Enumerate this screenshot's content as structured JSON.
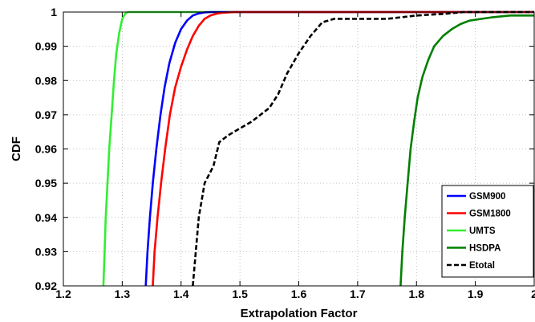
{
  "chart_data": {
    "type": "line",
    "title": "",
    "xlabel": "Extrapolation Factor",
    "ylabel": "CDF",
    "xlim": [
      1.2,
      2.0
    ],
    "ylim": [
      0.92,
      1.0
    ],
    "grid": true,
    "legend_position": "bottom-right",
    "x_ticks": [
      1.2,
      1.3,
      1.4,
      1.5,
      1.6,
      1.7,
      1.8,
      1.9,
      2.0
    ],
    "x_tick_labels": [
      "1.2",
      "1.3",
      "1.4",
      "1.5",
      "1.6",
      "1.7",
      "1.8",
      "1.9",
      "2"
    ],
    "y_ticks": [
      0.92,
      0.93,
      0.94,
      0.95,
      0.96,
      0.97,
      0.98,
      0.99,
      1.0
    ],
    "y_tick_labels": [
      "0.92",
      "0.93",
      "0.94",
      "0.95",
      "0.96",
      "0.97",
      "0.98",
      "0.99",
      "1"
    ],
    "series": [
      {
        "name": "GSM900",
        "color": "#0000ff",
        "style": "solid",
        "x": [
          1.34,
          1.343,
          1.347,
          1.352,
          1.358,
          1.365,
          1.372,
          1.38,
          1.39,
          1.4,
          1.41,
          1.42,
          1.43,
          1.44,
          1.45,
          2.0
        ],
        "y": [
          0.92,
          0.93,
          0.94,
          0.95,
          0.96,
          0.97,
          0.978,
          0.985,
          0.991,
          0.995,
          0.9975,
          0.999,
          0.9996,
          0.9999,
          1.0,
          1.0
        ]
      },
      {
        "name": "GSM1800",
        "color": "#ff0000",
        "style": "solid",
        "x": [
          1.352,
          1.355,
          1.36,
          1.366,
          1.373,
          1.381,
          1.39,
          1.4,
          1.41,
          1.42,
          1.43,
          1.44,
          1.45,
          1.46,
          1.47,
          1.48,
          1.49,
          2.0
        ],
        "y": [
          0.92,
          0.93,
          0.94,
          0.95,
          0.96,
          0.97,
          0.978,
          0.984,
          0.989,
          0.993,
          0.996,
          0.998,
          0.999,
          0.9995,
          0.9998,
          0.9999,
          1.0,
          1.0
        ]
      },
      {
        "name": "UMTS",
        "color": "#33ee33",
        "style": "solid",
        "x": [
          1.268,
          1.27,
          1.272,
          1.275,
          1.278,
          1.282,
          1.286,
          1.29,
          1.295,
          1.3,
          1.305,
          1.31,
          2.0
        ],
        "y": [
          0.92,
          0.93,
          0.94,
          0.95,
          0.96,
          0.97,
          0.98,
          0.988,
          0.994,
          0.998,
          0.9995,
          1.0,
          1.0
        ]
      },
      {
        "name": "HSDPA",
        "color": "#008000",
        "style": "solid",
        "x": [
          1.773,
          1.776,
          1.78,
          1.785,
          1.79,
          1.796,
          1.802,
          1.81,
          1.82,
          1.83,
          1.845,
          1.86,
          1.875,
          1.89,
          1.91,
          1.93,
          1.96,
          2.0
        ],
        "y": [
          0.92,
          0.93,
          0.94,
          0.95,
          0.96,
          0.968,
          0.975,
          0.981,
          0.986,
          0.99,
          0.993,
          0.995,
          0.9965,
          0.9975,
          0.998,
          0.9985,
          0.999,
          0.999
        ]
      },
      {
        "name": "Etotal",
        "color": "#000000",
        "style": "dashed",
        "x": [
          1.42,
          1.425,
          1.43,
          1.44,
          1.455,
          1.465,
          1.48,
          1.5,
          1.52,
          1.535,
          1.55,
          1.565,
          1.58,
          1.6,
          1.62,
          1.64,
          1.66,
          1.7,
          1.75,
          1.8,
          1.85,
          1.88,
          1.9,
          2.0
        ],
        "y": [
          0.92,
          0.93,
          0.94,
          0.95,
          0.955,
          0.962,
          0.964,
          0.966,
          0.968,
          0.97,
          0.972,
          0.976,
          0.982,
          0.988,
          0.993,
          0.997,
          0.998,
          0.998,
          0.998,
          0.999,
          0.9995,
          1.0,
          1.0,
          1.0
        ]
      }
    ]
  }
}
